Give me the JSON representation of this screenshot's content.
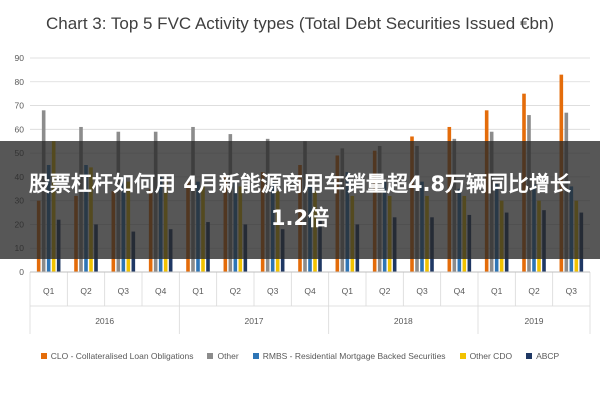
{
  "chart_data": {
    "type": "bar",
    "title": "Chart 3: Top 5 FVC Activity types (Total Debt Securities Issued €bn)",
    "xlabel": "",
    "ylabel": "",
    "ylim": [
      0,
      90
    ],
    "yticks": [
      0,
      10,
      20,
      30,
      40,
      50,
      60,
      70,
      80,
      90
    ],
    "grid": true,
    "legend_position": "bottom",
    "categories": [
      "Q1",
      "Q2",
      "Q3",
      "Q4",
      "Q1",
      "Q2",
      "Q3",
      "Q4",
      "Q1",
      "Q2",
      "Q3",
      "Q4",
      "Q1",
      "Q2",
      "Q3"
    ],
    "year_groups": [
      {
        "label": "2016",
        "count": 4
      },
      {
        "label": "2017",
        "count": 4
      },
      {
        "label": "2018",
        "count": 4
      },
      {
        "label": "2019",
        "count": 3
      }
    ],
    "series": [
      {
        "name": "CLO - Collateralised Loan Obligations",
        "color": "#e46c0a",
        "values": [
          30,
          32,
          34,
          35,
          38,
          40,
          42,
          45,
          49,
          51,
          57,
          61,
          68,
          75,
          83
        ]
      },
      {
        "name": "Other",
        "color": "#8c8c8c",
        "values": [
          68,
          61,
          59,
          59,
          61,
          58,
          56,
          55,
          52,
          53,
          53,
          56,
          59,
          66,
          67
        ]
      },
      {
        "name": "RMBS - Residential Mortgage Backed Securities",
        "color": "#2e75b6",
        "values": [
          45,
          45,
          40,
          40,
          38,
          38,
          38,
          36,
          42,
          38,
          38,
          35,
          37,
          37,
          36
        ]
      },
      {
        "name": "Other CDO",
        "color": "#f2c200",
        "values": [
          55,
          44,
          38,
          38,
          36,
          36,
          34,
          34,
          32,
          32,
          32,
          32,
          30,
          30,
          30
        ]
      },
      {
        "name": "ABCP",
        "color": "#1f3864",
        "values": [
          22,
          20,
          17,
          18,
          21,
          20,
          18,
          22,
          20,
          23,
          23,
          24,
          25,
          26,
          25
        ]
      }
    ]
  },
  "overlay": {
    "headline": "股票杠杆如何用 4月新能源商用车销量超4.8万辆同比增长1.2倍"
  }
}
